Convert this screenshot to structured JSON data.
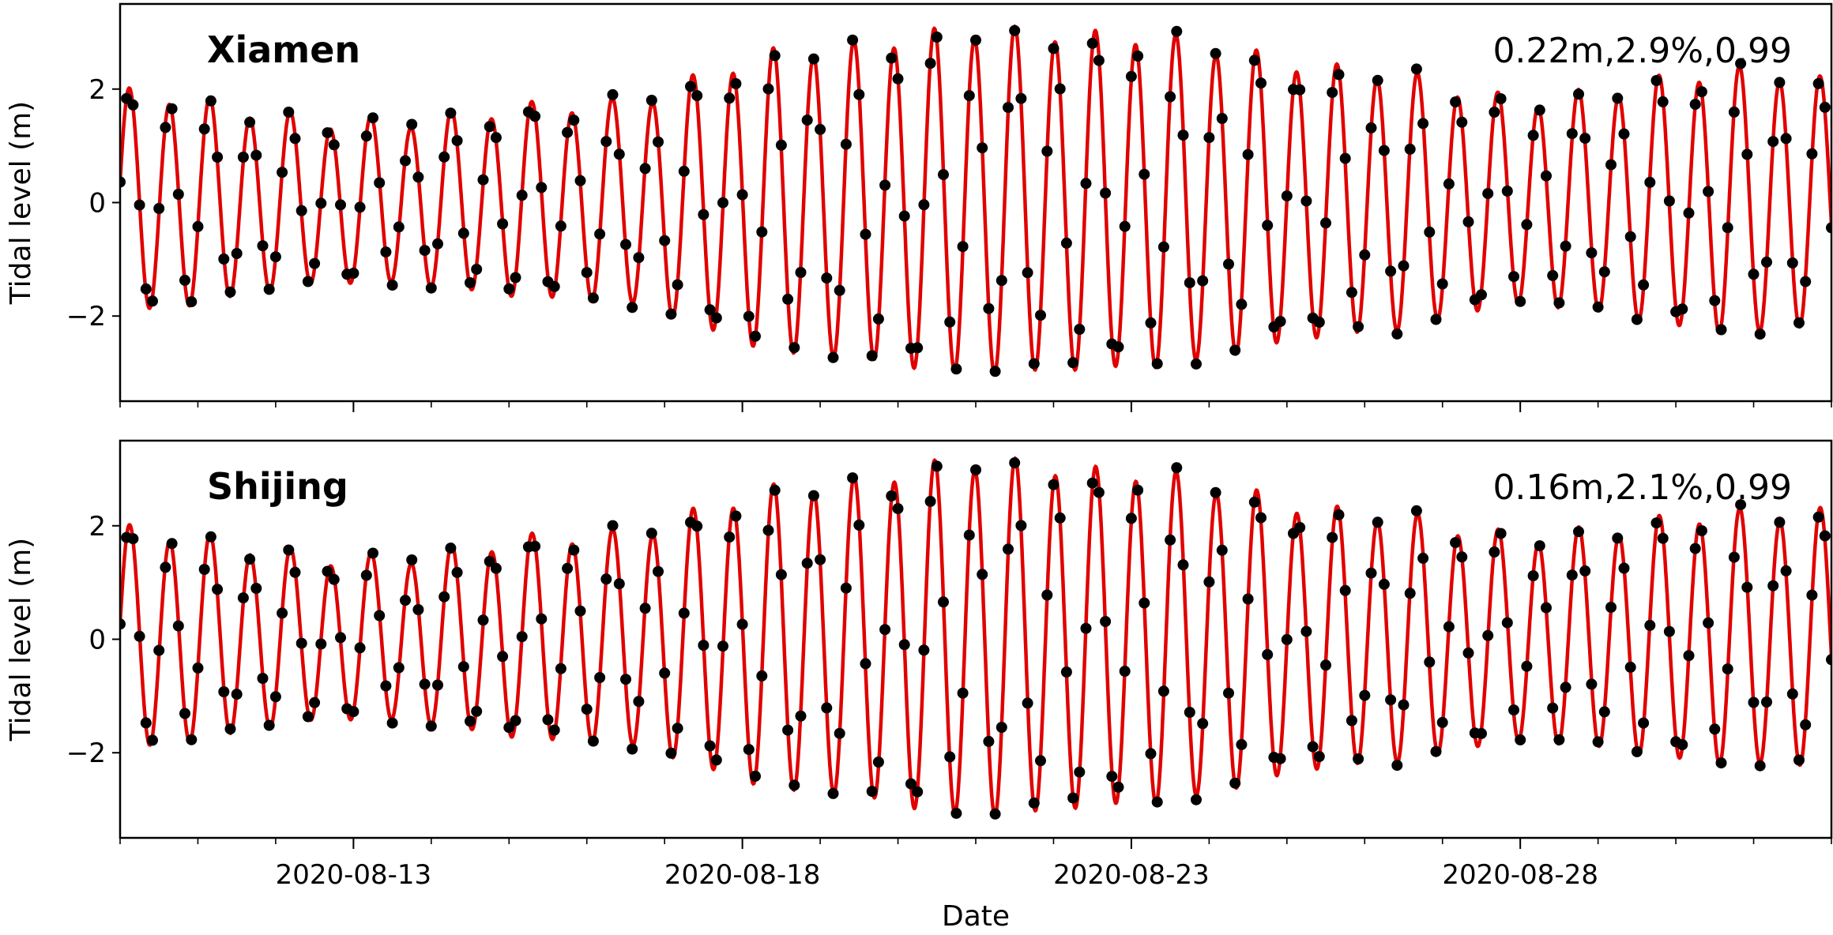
{
  "chart_data": [
    {
      "type": "line",
      "title": "",
      "annotation_station": "Xiamen",
      "annotation_stats": "0.22m,2.9%,0.99",
      "xlabel": "",
      "ylabel": "Tidal level (m)",
      "xlim": [
        "2020-08-10",
        "2020-09-01"
      ],
      "ylim": [
        -3.5,
        3.5
      ],
      "yticks": [
        -2,
        0,
        2
      ],
      "xticks": [],
      "grid": false,
      "series": [
        {
          "kind": "line",
          "color": "#e00000",
          "values_note": "continuous predicted tide"
        },
        {
          "kind": "scatter",
          "color": "#000000"
        }
      ],
      "tide_model": {
        "mean": 0.0,
        "semidiurnal_period_h": 12.42,
        "envelope_days": [
          "2020-08-10",
          "2020-08-13",
          "2020-08-16",
          "2020-08-19",
          "2020-08-21",
          "2020-08-23",
          "2020-08-26",
          "2020-08-28",
          "2020-08-31",
          "2020-09-01"
        ],
        "envelope_amp": [
          1.9,
          1.4,
          1.7,
          2.7,
          3.0,
          2.9,
          2.3,
          1.8,
          2.3,
          2.1
        ]
      }
    },
    {
      "type": "line",
      "title": "",
      "annotation_station": "Shijing",
      "annotation_stats": "0.16m,2.1%,0.99",
      "xlabel": "Date",
      "ylabel": "Tidal level (m)",
      "xlim": [
        "2020-08-10",
        "2020-09-01"
      ],
      "ylim": [
        -3.5,
        3.5
      ],
      "yticks": [
        -2,
        0,
        2
      ],
      "xticks": [
        "2020-08-13",
        "2020-08-18",
        "2020-08-23",
        "2020-08-28"
      ],
      "grid": false,
      "series": [
        {
          "kind": "line",
          "color": "#e00000"
        },
        {
          "kind": "scatter",
          "color": "#000000"
        }
      ],
      "tide_model": {
        "mean": 0.0,
        "semidiurnal_period_h": 12.42,
        "envelope_days": [
          "2020-08-10",
          "2020-08-13",
          "2020-08-16",
          "2020-08-19",
          "2020-08-21",
          "2020-08-23",
          "2020-08-26",
          "2020-08-28",
          "2020-08-31",
          "2020-09-01"
        ],
        "envelope_amp": [
          1.9,
          1.4,
          1.8,
          2.7,
          3.1,
          2.9,
          2.2,
          1.8,
          2.2,
          2.2
        ]
      }
    }
  ]
}
